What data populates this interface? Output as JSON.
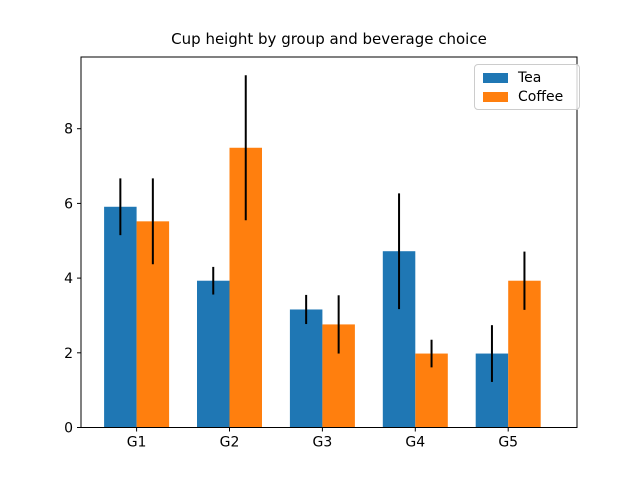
{
  "chart_data": {
    "type": "bar",
    "title": "Cup height by group and beverage choice",
    "xlabel": "",
    "ylabel": "",
    "categories": [
      "G1",
      "G2",
      "G3",
      "G4",
      "G5"
    ],
    "series": [
      {
        "name": "Tea",
        "color": "#1f77b4",
        "values": [
          5.91,
          3.93,
          3.16,
          4.72,
          1.98
        ],
        "errors": [
          0.76,
          0.37,
          0.39,
          1.55,
          0.76
        ]
      },
      {
        "name": "Coffee",
        "color": "#ff7f0e",
        "values": [
          5.52,
          7.49,
          2.76,
          1.98,
          3.93
        ],
        "errors": [
          1.15,
          1.94,
          0.78,
          0.37,
          0.78
        ]
      }
    ],
    "error_bar_color": "#000000",
    "yticks": [
      0,
      2,
      4,
      6,
      8
    ],
    "ylim": [
      0,
      9.92
    ],
    "bar_width_data_units": 0.35,
    "grid": false,
    "legend_position": "upper right",
    "axis_color": "#000000",
    "background_color": "#ffffff"
  }
}
